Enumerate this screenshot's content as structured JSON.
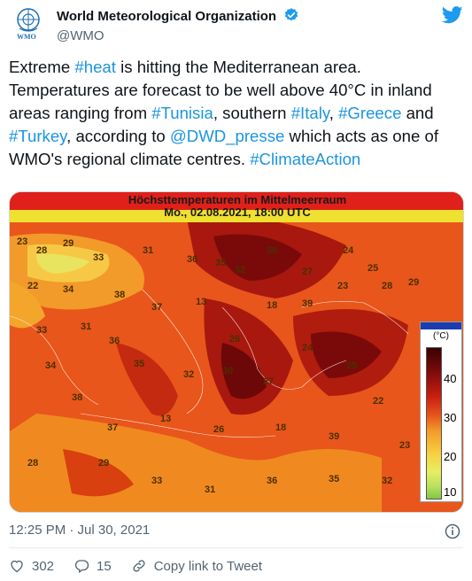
{
  "account": {
    "display_name": "World Meteorological Organization",
    "handle": "@WMO",
    "avatar_text": "WMO",
    "verified": true
  },
  "tweet": {
    "segments": [
      {
        "text": "Extreme ",
        "tag": false
      },
      {
        "text": "#heat",
        "tag": true
      },
      {
        "text": " is hitting the Mediterranean area. Temperatures are forecast to be well above 40°C in inland areas ranging from ",
        "tag": false
      },
      {
        "text": "#Tunisia",
        "tag": true
      },
      {
        "text": ", southern ",
        "tag": false
      },
      {
        "text": "#Italy",
        "tag": true
      },
      {
        "text": ", ",
        "tag": false
      },
      {
        "text": "#Greece",
        "tag": true
      },
      {
        "text": " and ",
        "tag": false
      },
      {
        "text": "#Turkey",
        "tag": true
      },
      {
        "text": ", according to ",
        "tag": false
      },
      {
        "text": "@DWD_presse",
        "tag": true
      },
      {
        "text": " which acts as one of WMO's regional climate centres. ",
        "tag": false
      },
      {
        "text": "#ClimateAction",
        "tag": true
      }
    ],
    "link_color": "#1b95e0"
  },
  "map": {
    "title_line1": "Höchsttemperaturen im Mittelmeerraum",
    "title_line2": "Mo., 02.08.2021, 18:00 UTC",
    "legend_unit": "(°C)",
    "legend_ticks": [
      "40",
      "30",
      "20",
      "10"
    ],
    "labels": [
      "23",
      "28",
      "29",
      "33",
      "31",
      "36",
      "35",
      "32",
      "30",
      "27",
      "24",
      "25",
      "22",
      "34",
      "38",
      "37",
      "13",
      "26",
      "18",
      "39"
    ]
  },
  "meta": {
    "timestamp": "12:25 PM · Jul 30, 2021"
  },
  "actions": {
    "likes": "302",
    "replies": "15",
    "copy_link": "Copy link to Tweet"
  },
  "colors": {
    "twitter_blue": "#1d9bf0",
    "text_secondary": "#536471",
    "heat_dark": "#7a0a0a",
    "heat_mid": "#e04a16",
    "heat_light": "#f59a2a"
  },
  "icons": [
    "wmo-logo-icon",
    "verified-badge-icon",
    "twitter-bird-icon",
    "info-icon",
    "heart-icon",
    "reply-icon",
    "link-icon"
  ]
}
